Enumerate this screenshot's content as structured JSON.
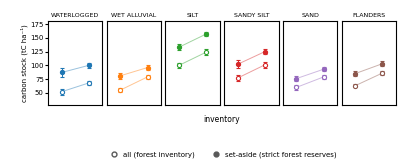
{
  "chart_data": [
    {
      "type": "line",
      "title": "WATERLOGGED",
      "categories": [
        null,
        null
      ],
      "ylabel": "carbon stock (tC ha⁻¹)",
      "ylim": [
        28,
        180
      ],
      "yticks": [
        50,
        75,
        100,
        125,
        150,
        175
      ],
      "tick_labels": "y",
      "series": [
        {
          "name": "all (forest inventory)",
          "marker": "open_circle",
          "values": [
            52,
            68
          ],
          "errors": [
            5,
            4
          ]
        },
        {
          "name": "set-aside (strict forest reserves)",
          "marker": "circle",
          "values": [
            87,
            100
          ],
          "errors": [
            8,
            5
          ]
        }
      ]
    },
    {
      "type": "line",
      "title": "WET ALLUVIAL",
      "categories": [
        null,
        null
      ],
      "ylim": [
        28,
        180
      ],
      "yticks": [
        50,
        75,
        100,
        125,
        150,
        175
      ],
      "tick_labels": false,
      "series": [
        {
          "name": "all (forest inventory)",
          "marker": "open_circle",
          "values": [
            55,
            79
          ],
          "errors": [
            4,
            4
          ]
        },
        {
          "name": "set-aside (strict forest reserves)",
          "marker": "circle",
          "values": [
            81,
            96
          ],
          "errors": [
            5,
            5
          ]
        }
      ]
    },
    {
      "type": "line",
      "title": "SILT",
      "categories": [
        null,
        null
      ],
      "ylim": [
        28,
        180
      ],
      "yticks": [
        50,
        75,
        100,
        125,
        150,
        175
      ],
      "tick_labels": false,
      "series": [
        {
          "name": "all (forest inventory)",
          "marker": "open_circle",
          "values": [
            100,
            124
          ],
          "errors": [
            5,
            5
          ]
        },
        {
          "name": "set-aside (strict forest reserves)",
          "marker": "circle",
          "values": [
            133,
            157
          ],
          "errors": [
            5,
            4
          ]
        }
      ]
    },
    {
      "type": "line",
      "title": "SANDY SILT",
      "categories": [
        null,
        null
      ],
      "ylim": [
        28,
        180
      ],
      "yticks": [
        50,
        75,
        100,
        125,
        150,
        175
      ],
      "tick_labels": false,
      "series": [
        {
          "name": "all (forest inventory)",
          "marker": "open_circle",
          "values": [
            77,
            101
          ],
          "errors": [
            6,
            5
          ]
        },
        {
          "name": "set-aside (strict forest reserves)",
          "marker": "circle",
          "values": [
            102,
            125
          ],
          "errors": [
            7,
            5
          ]
        }
      ]
    },
    {
      "type": "line",
      "title": "SAND",
      "categories": [
        null,
        null
      ],
      "ylim": [
        28,
        180
      ],
      "yticks": [
        50,
        75,
        100,
        125,
        150,
        175
      ],
      "tick_labels": false,
      "series": [
        {
          "name": "all (forest inventory)",
          "marker": "open_circle",
          "values": [
            60,
            79
          ],
          "errors": [
            5,
            4
          ]
        },
        {
          "name": "set-aside (strict forest reserves)",
          "marker": "circle",
          "values": [
            76,
            93
          ],
          "errors": [
            5,
            4
          ]
        }
      ]
    },
    {
      "type": "line",
      "title": "FLANDERS",
      "categories": [
        null,
        null
      ],
      "ylim": [
        28,
        180
      ],
      "yticks": [
        50,
        75,
        100,
        125,
        150,
        175
      ],
      "tick_labels": false,
      "series": [
        {
          "name": "all (forest inventory)",
          "marker": "open_circle",
          "values": [
            63,
            86
          ],
          "errors": [
            3,
            3
          ]
        },
        {
          "name": "set-aside (strict forest reserves)",
          "marker": "circle",
          "values": [
            85,
            103
          ],
          "errors": [
            4,
            4
          ]
        }
      ]
    }
  ],
  "xlabel": "inventory",
  "legend": "lower center"
}
